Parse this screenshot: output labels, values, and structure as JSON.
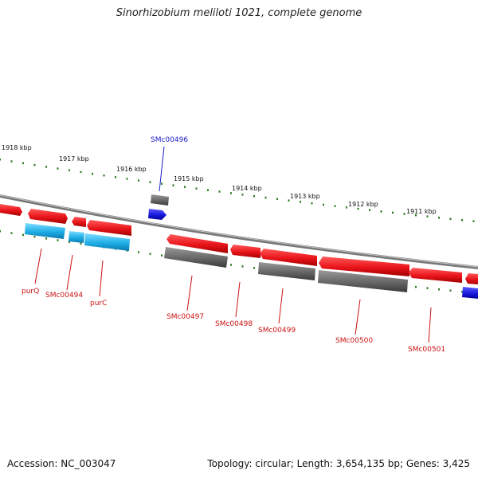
{
  "title": "Sinorhizobium meliloti 1021, complete genome",
  "accession": "Accession: NC_003047",
  "summary": "Topology: circular; Length: 3,654,135 bp; Genes: 3,425",
  "colors": {
    "backbone": "#888888",
    "tick": "#2a7a1f",
    "gene": "#e8141a",
    "gene_label": "#cc1111",
    "cds": "#666666",
    "blue": "#1a1adc",
    "cyan": "#1eaee6",
    "highlight_label": "#1a1acc"
  },
  "scale_labels": [
    "1918 kbp",
    "1917 kbp",
    "1916 kbp",
    "1915 kbp",
    "1914 kbp",
    "1913 kbp",
    "1912 kbp",
    "1911 kbp"
  ],
  "gene_labels": [
    "purQ",
    "SMc00494",
    "purC",
    "SMc00497",
    "SMc00498",
    "SMc00499",
    "SMc00500",
    "SMc00501"
  ],
  "highlight_label": "SMc00496"
}
